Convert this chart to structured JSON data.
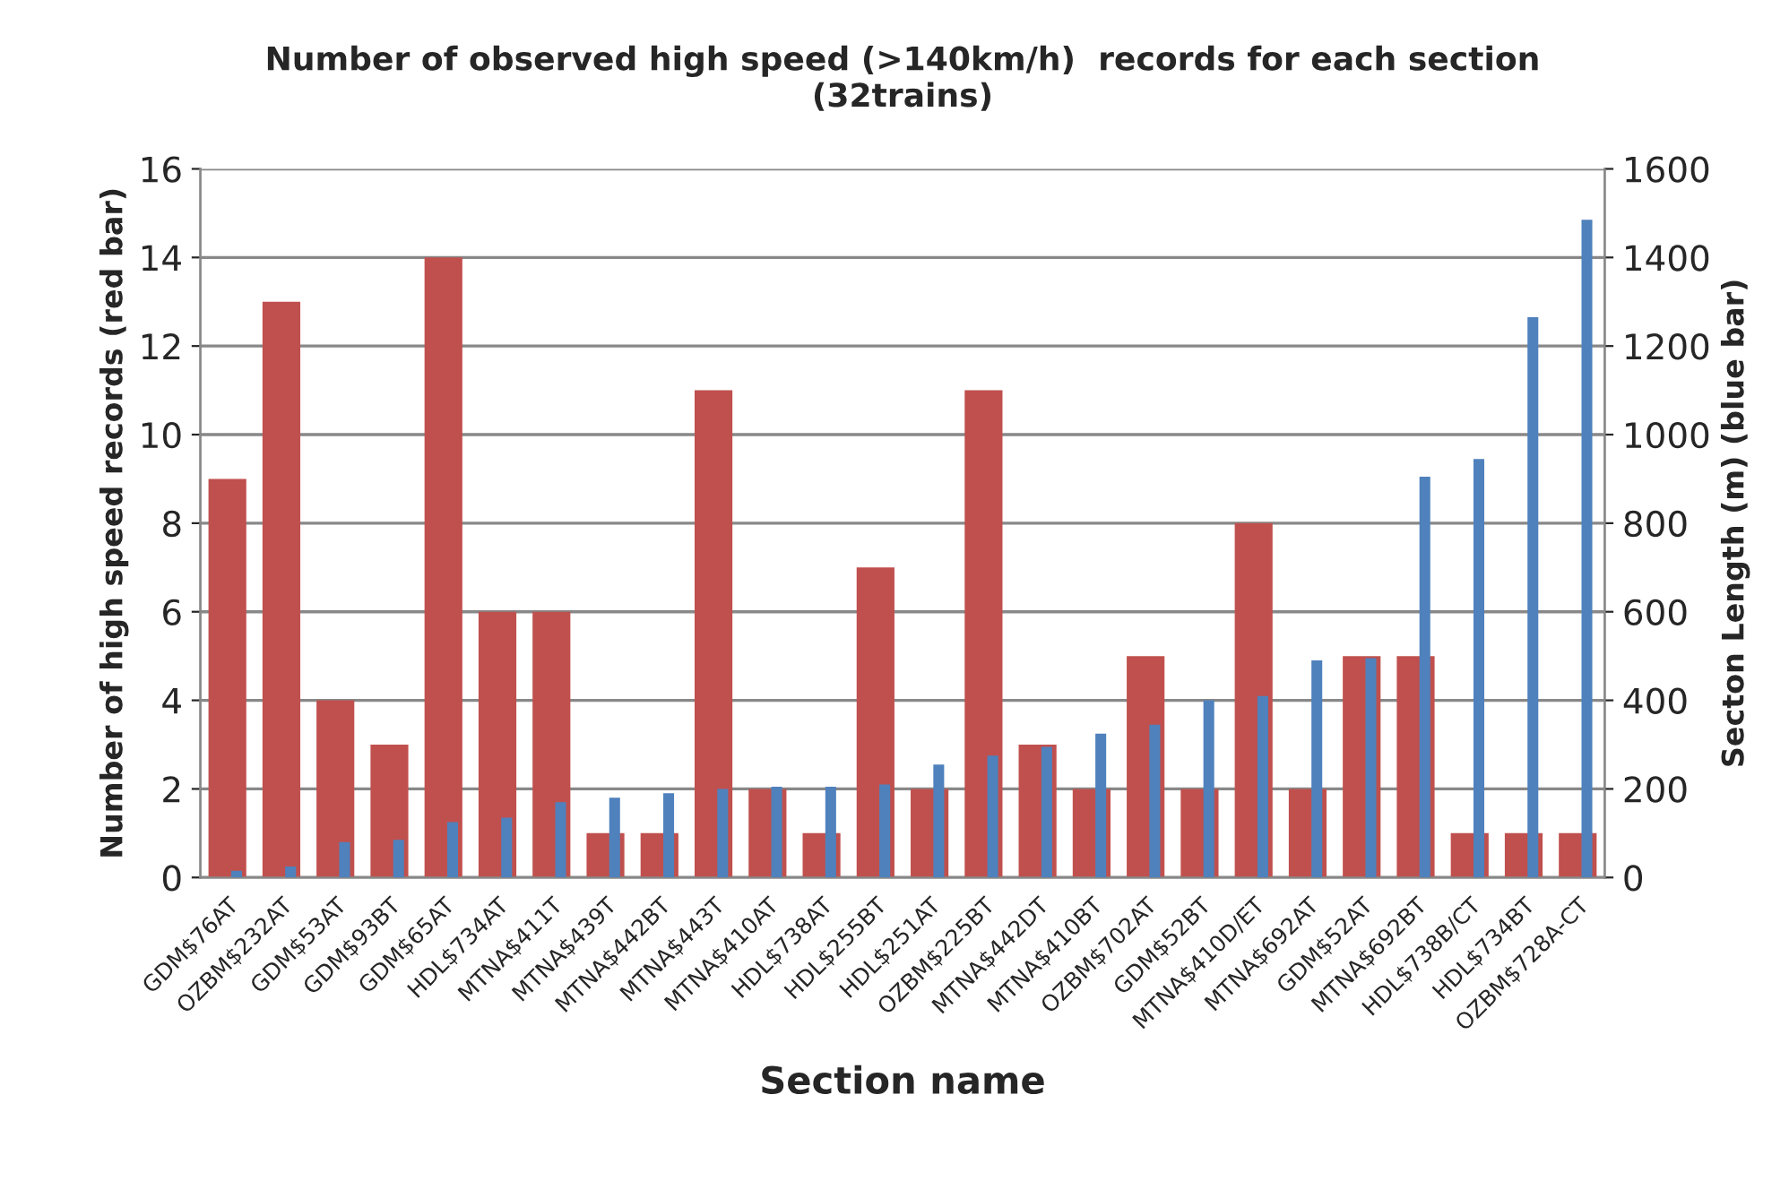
{
  "chart_data": {
    "type": "bar",
    "title": "Number of observed high speed (>140km/h)  records for each section\n(32trains)",
    "xlabel": "Section name",
    "ylabel": "Number of high speed records (red bar)",
    "y2label": "Secton Length (m) (blue bar)",
    "categories": [
      "GDM$76AT",
      "OZBM$232AT",
      "GDM$53AT",
      "GDM$93BT",
      "GDM$65AT",
      "HDL$734AT",
      "MTNA$411T",
      "MTNA$439T",
      "MTNA$442BT",
      "MTNA$443T",
      "MTNA$410AT",
      "HDL$738AT",
      "HDL$255BT",
      "HDL$251AT",
      "OZBM$225BT",
      "MTNA$442DT",
      "MTNA$410BT",
      "OZBM$702AT",
      "GDM$52BT",
      "MTNA$410D/ET",
      "MTNA$692AT",
      "GDM$52AT",
      "MTNA$692BT",
      "HDL$738B/CT",
      "HDL$734BT",
      "OZBM$728A-CT"
    ],
    "series": [
      {
        "color": "#c0504d",
        "values": [
          9,
          13,
          4,
          3,
          14,
          6,
          6,
          1,
          1,
          11,
          2,
          1,
          7,
          2,
          11,
          3,
          2,
          5,
          2,
          8,
          2,
          5,
          5,
          1,
          1,
          1
        ]
      },
      {
        "color": "#4f81bd",
        "axis": "y2",
        "values": [
          15,
          25,
          80,
          85,
          125,
          135,
          170,
          180,
          190,
          200,
          205,
          205,
          210,
          255,
          275,
          295,
          325,
          345,
          400,
          410,
          490,
          495,
          905,
          945,
          1265,
          1485
        ]
      }
    ],
    "ylim": [
      0,
      16
    ],
    "yticks": [
      0,
      2,
      4,
      6,
      8,
      10,
      12,
      14,
      16
    ],
    "y2lim": [
      0,
      1600
    ],
    "y2ticks": [
      0,
      200,
      400,
      600,
      800,
      1000,
      1200,
      1400,
      1600
    ],
    "grid": "y",
    "legend": false
  }
}
